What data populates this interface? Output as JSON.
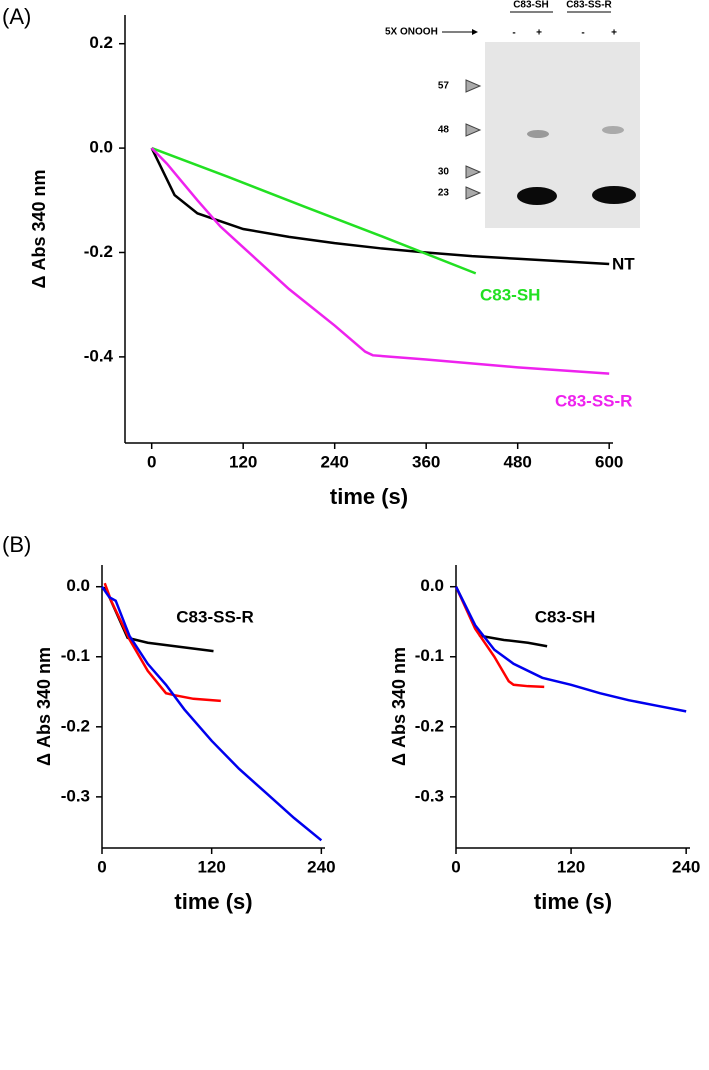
{
  "panel_labels": [
    "(A)",
    "(B)"
  ],
  "inset": {
    "lanes_header": [
      "C83-SH",
      "C83-SS-R"
    ],
    "treatment": "5X ONOOH",
    "lane_signs": [
      "-",
      "+",
      "-",
      "+"
    ],
    "markers": [
      57,
      48,
      30,
      23
    ]
  },
  "chart_data": [
    {
      "type": "line",
      "xlabel": "time (s)",
      "ylabel": "Δ Abs 340 nm",
      "xlim": [
        -35,
        605
      ],
      "ylim": [
        -0.565,
        0.255
      ],
      "xticks": [
        0,
        120,
        240,
        360,
        480,
        600
      ],
      "yticks": [
        0.2,
        {
          "value": 0,
          "label": "0.0"
        },
        -0.2,
        -0.4
      ],
      "series": [
        {
          "name": "NT",
          "color": "#000000",
          "x": [
            0,
            30,
            60,
            120,
            180,
            240,
            300,
            360,
            420,
            480,
            540,
            600
          ],
          "values": [
            0,
            -0.09,
            -0.125,
            -0.155,
            -0.17,
            -0.182,
            -0.192,
            -0.2,
            -0.207,
            -0.212,
            -0.217,
            -0.222
          ]
        },
        {
          "name": "C83-SH",
          "color": "#22e022",
          "x": [
            0,
            100,
            200,
            300,
            425
          ],
          "values": [
            0,
            -0.055,
            -0.112,
            -0.168,
            -0.24
          ]
        },
        {
          "name": "C83-SS-R",
          "color": "#ee22ee",
          "x": [
            0,
            20,
            40,
            60,
            90,
            120,
            180,
            240,
            280,
            290,
            360,
            480,
            600
          ],
          "values": [
            0,
            -0.03,
            -0.065,
            -0.1,
            -0.15,
            -0.19,
            -0.27,
            -0.34,
            -0.39,
            -0.397,
            -0.405,
            -0.42,
            -0.432
          ]
        }
      ]
    },
    {
      "type": "line",
      "title": "C83-SS-R",
      "xlabel": "time (s)",
      "ylabel": "Δ Abs 340 nm",
      "xlim": [
        0,
        244
      ],
      "ylim": [
        -0.373,
        0.031
      ],
      "xticks": [
        0,
        120,
        240
      ],
      "yticks": [
        {
          "value": 0,
          "label": "0.0"
        },
        -0.1,
        -0.2,
        -0.3
      ],
      "series": [
        {
          "color": "#000000",
          "x": [
            3,
            28,
            50,
            80,
            122
          ],
          "values": [
            0,
            -0.073,
            -0.08,
            -0.085,
            -0.092
          ]
        },
        {
          "color": "#ff0000",
          "x": [
            3,
            10,
            30,
            50,
            70,
            80,
            100,
            130
          ],
          "values": [
            0.005,
            -0.02,
            -0.075,
            -0.12,
            -0.152,
            -0.155,
            -0.16,
            -0.163
          ]
        },
        {
          "color": "#0000ee",
          "x": [
            0,
            8,
            15,
            30,
            50,
            70,
            90,
            120,
            150,
            180,
            210,
            240
          ],
          "values": [
            0,
            -0.015,
            -0.02,
            -0.07,
            -0.11,
            -0.14,
            -0.175,
            -0.22,
            -0.26,
            -0.295,
            -0.33,
            -0.362
          ]
        }
      ]
    },
    {
      "type": "line",
      "title": "C83-SH",
      "xlabel": "time (s)",
      "ylabel": "Δ Abs 340 nm",
      "xlim": [
        0,
        244
      ],
      "ylim": [
        -0.373,
        0.031
      ],
      "xticks": [
        0,
        120,
        240
      ],
      "yticks": [
        {
          "value": 0,
          "label": "0.0"
        },
        -0.1,
        -0.2,
        -0.3
      ],
      "series": [
        {
          "color": "#000000",
          "x": [
            0,
            25,
            50,
            75,
            95
          ],
          "values": [
            0,
            -0.07,
            -0.076,
            -0.08,
            -0.085
          ]
        },
        {
          "color": "#ff0000",
          "x": [
            0,
            20,
            40,
            55,
            60,
            75,
            92
          ],
          "values": [
            0,
            -0.06,
            -0.1,
            -0.135,
            -0.14,
            -0.142,
            -0.143
          ]
        },
        {
          "color": "#0000ee",
          "x": [
            0,
            20,
            40,
            60,
            90,
            120,
            150,
            180,
            210,
            240
          ],
          "values": [
            0,
            -0.055,
            -0.09,
            -0.11,
            -0.13,
            -0.14,
            -0.152,
            -0.162,
            -0.17,
            -0.178
          ]
        }
      ]
    }
  ]
}
